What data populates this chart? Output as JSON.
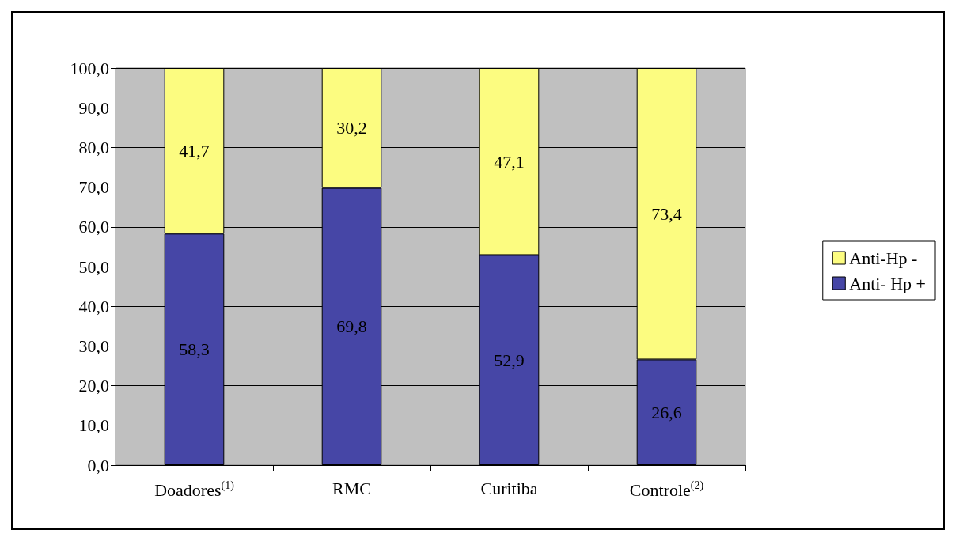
{
  "chart_data": {
    "type": "bar",
    "stacked": true,
    "categories": [
      "Doadores$^{(1)}$",
      "RMC",
      "Curitiba",
      "Controle$^{(2)}$"
    ],
    "series": [
      {
        "name": "Anti- Hp +",
        "color": "#4646a6",
        "values": [
          58.3,
          69.8,
          52.9,
          26.6
        ],
        "value_labels": [
          "58,3",
          "69,8",
          "52,9",
          "26,6"
        ]
      },
      {
        "name": "Anti-Hp -",
        "color": "#fcfc80",
        "values": [
          41.7,
          30.2,
          47.1,
          73.4
        ],
        "value_labels": [
          "41,7",
          "30,2",
          "47,1",
          "73,4"
        ]
      }
    ],
    "ylim": [
      0,
      100
    ],
    "yticks": [
      {
        "value": 0,
        "label": "0,0"
      },
      {
        "value": 10,
        "label": "10,0"
      },
      {
        "value": 20,
        "label": "20,0"
      },
      {
        "value": 30,
        "label": "30,0"
      },
      {
        "value": 40,
        "label": "40,0"
      },
      {
        "value": 50,
        "label": "50,0"
      },
      {
        "value": 60,
        "label": "60,0"
      },
      {
        "value": 70,
        "label": "70,0"
      },
      {
        "value": 80,
        "label": "80,0"
      },
      {
        "value": 90,
        "label": "90,0"
      },
      {
        "value": 100,
        "label": "100,0"
      }
    ],
    "grid": "y",
    "legend": "right"
  }
}
